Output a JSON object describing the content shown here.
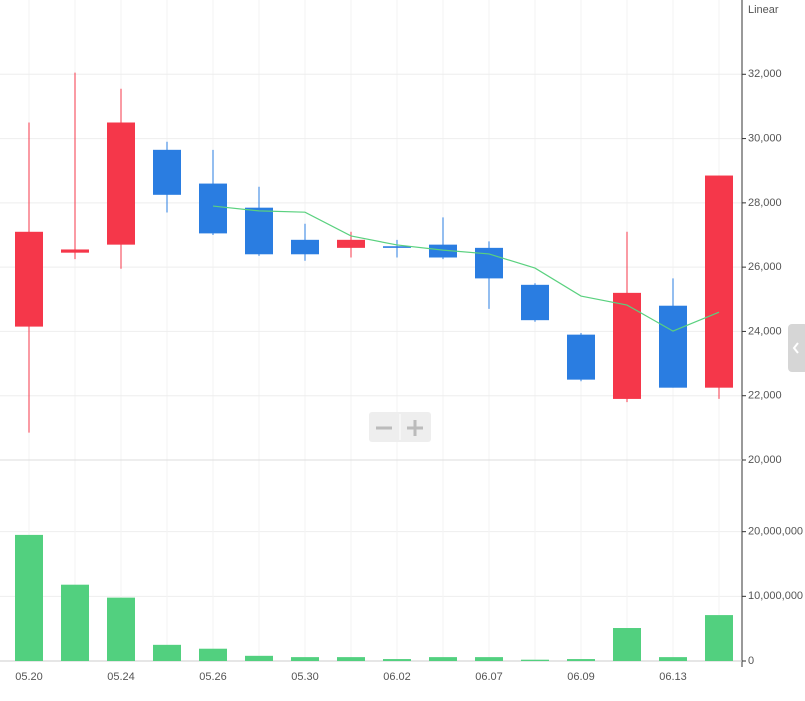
{
  "chart_data": [
    {
      "type": "candlestick",
      "scale_label": "Linear",
      "categories": [
        "05.20",
        null,
        "05.24",
        null,
        "05.26",
        null,
        "05.30",
        null,
        "06.02",
        null,
        "06.07",
        null,
        "06.09",
        null,
        "06.13",
        null
      ],
      "open": [
        24150,
        26450,
        26700,
        29650,
        28600,
        27850,
        26850,
        26600,
        26650,
        26700,
        26600,
        25450,
        23900,
        21900,
        24800,
        22250
      ],
      "high": [
        30500,
        32050,
        31550,
        29900,
        29650,
        28500,
        27350,
        27100,
        26850,
        27550,
        26800,
        25500,
        23950,
        27100,
        25650,
        28850
      ],
      "low": [
        20850,
        26250,
        25950,
        27700,
        27000,
        26350,
        26200,
        26300,
        26300,
        26250,
        24700,
        24300,
        22450,
        21800,
        22250,
        21900
      ],
      "close": [
        27100,
        26550,
        30500,
        28250,
        27050,
        26400,
        26400,
        26850,
        26600,
        26300,
        25650,
        24350,
        22500,
        25200,
        22250,
        28850
      ],
      "up_color": "#f5374a",
      "down_color": "#2a7de1",
      "moving_average": {
        "color": "#5ad17f",
        "values": [
          null,
          null,
          null,
          null,
          27900,
          27750,
          27710,
          26970,
          26690,
          26530,
          26410,
          25970,
          25100,
          24820,
          24010,
          24600
        ]
      },
      "ylim": [
        20000,
        34000
      ],
      "yticks": [
        {
          "value": 20000,
          "label": "20,000"
        },
        {
          "value": 22000,
          "label": "22,000"
        },
        {
          "value": 24000,
          "label": "24,000"
        },
        {
          "value": 26000,
          "label": "26,000"
        },
        {
          "value": 28000,
          "label": "28,000"
        },
        {
          "value": 30000,
          "label": "30,000"
        },
        {
          "value": 32000,
          "label": "32,000"
        }
      ],
      "grid": true
    },
    {
      "type": "bar",
      "values": [
        19500000,
        11800000,
        9800000,
        2500000,
        1900000,
        800000,
        600000,
        600000,
        300000,
        600000,
        600000,
        200000,
        300000,
        5100000,
        600000,
        7100000
      ],
      "color": "#52d07f",
      "ylim": [
        0,
        30000000
      ],
      "yticks": [
        0,
        {
          "value": 10000000,
          "label": "10,000,000"
        },
        {
          "value": 20000000,
          "label": "20,000,000"
        }
      ],
      "grid": true
    }
  ]
}
